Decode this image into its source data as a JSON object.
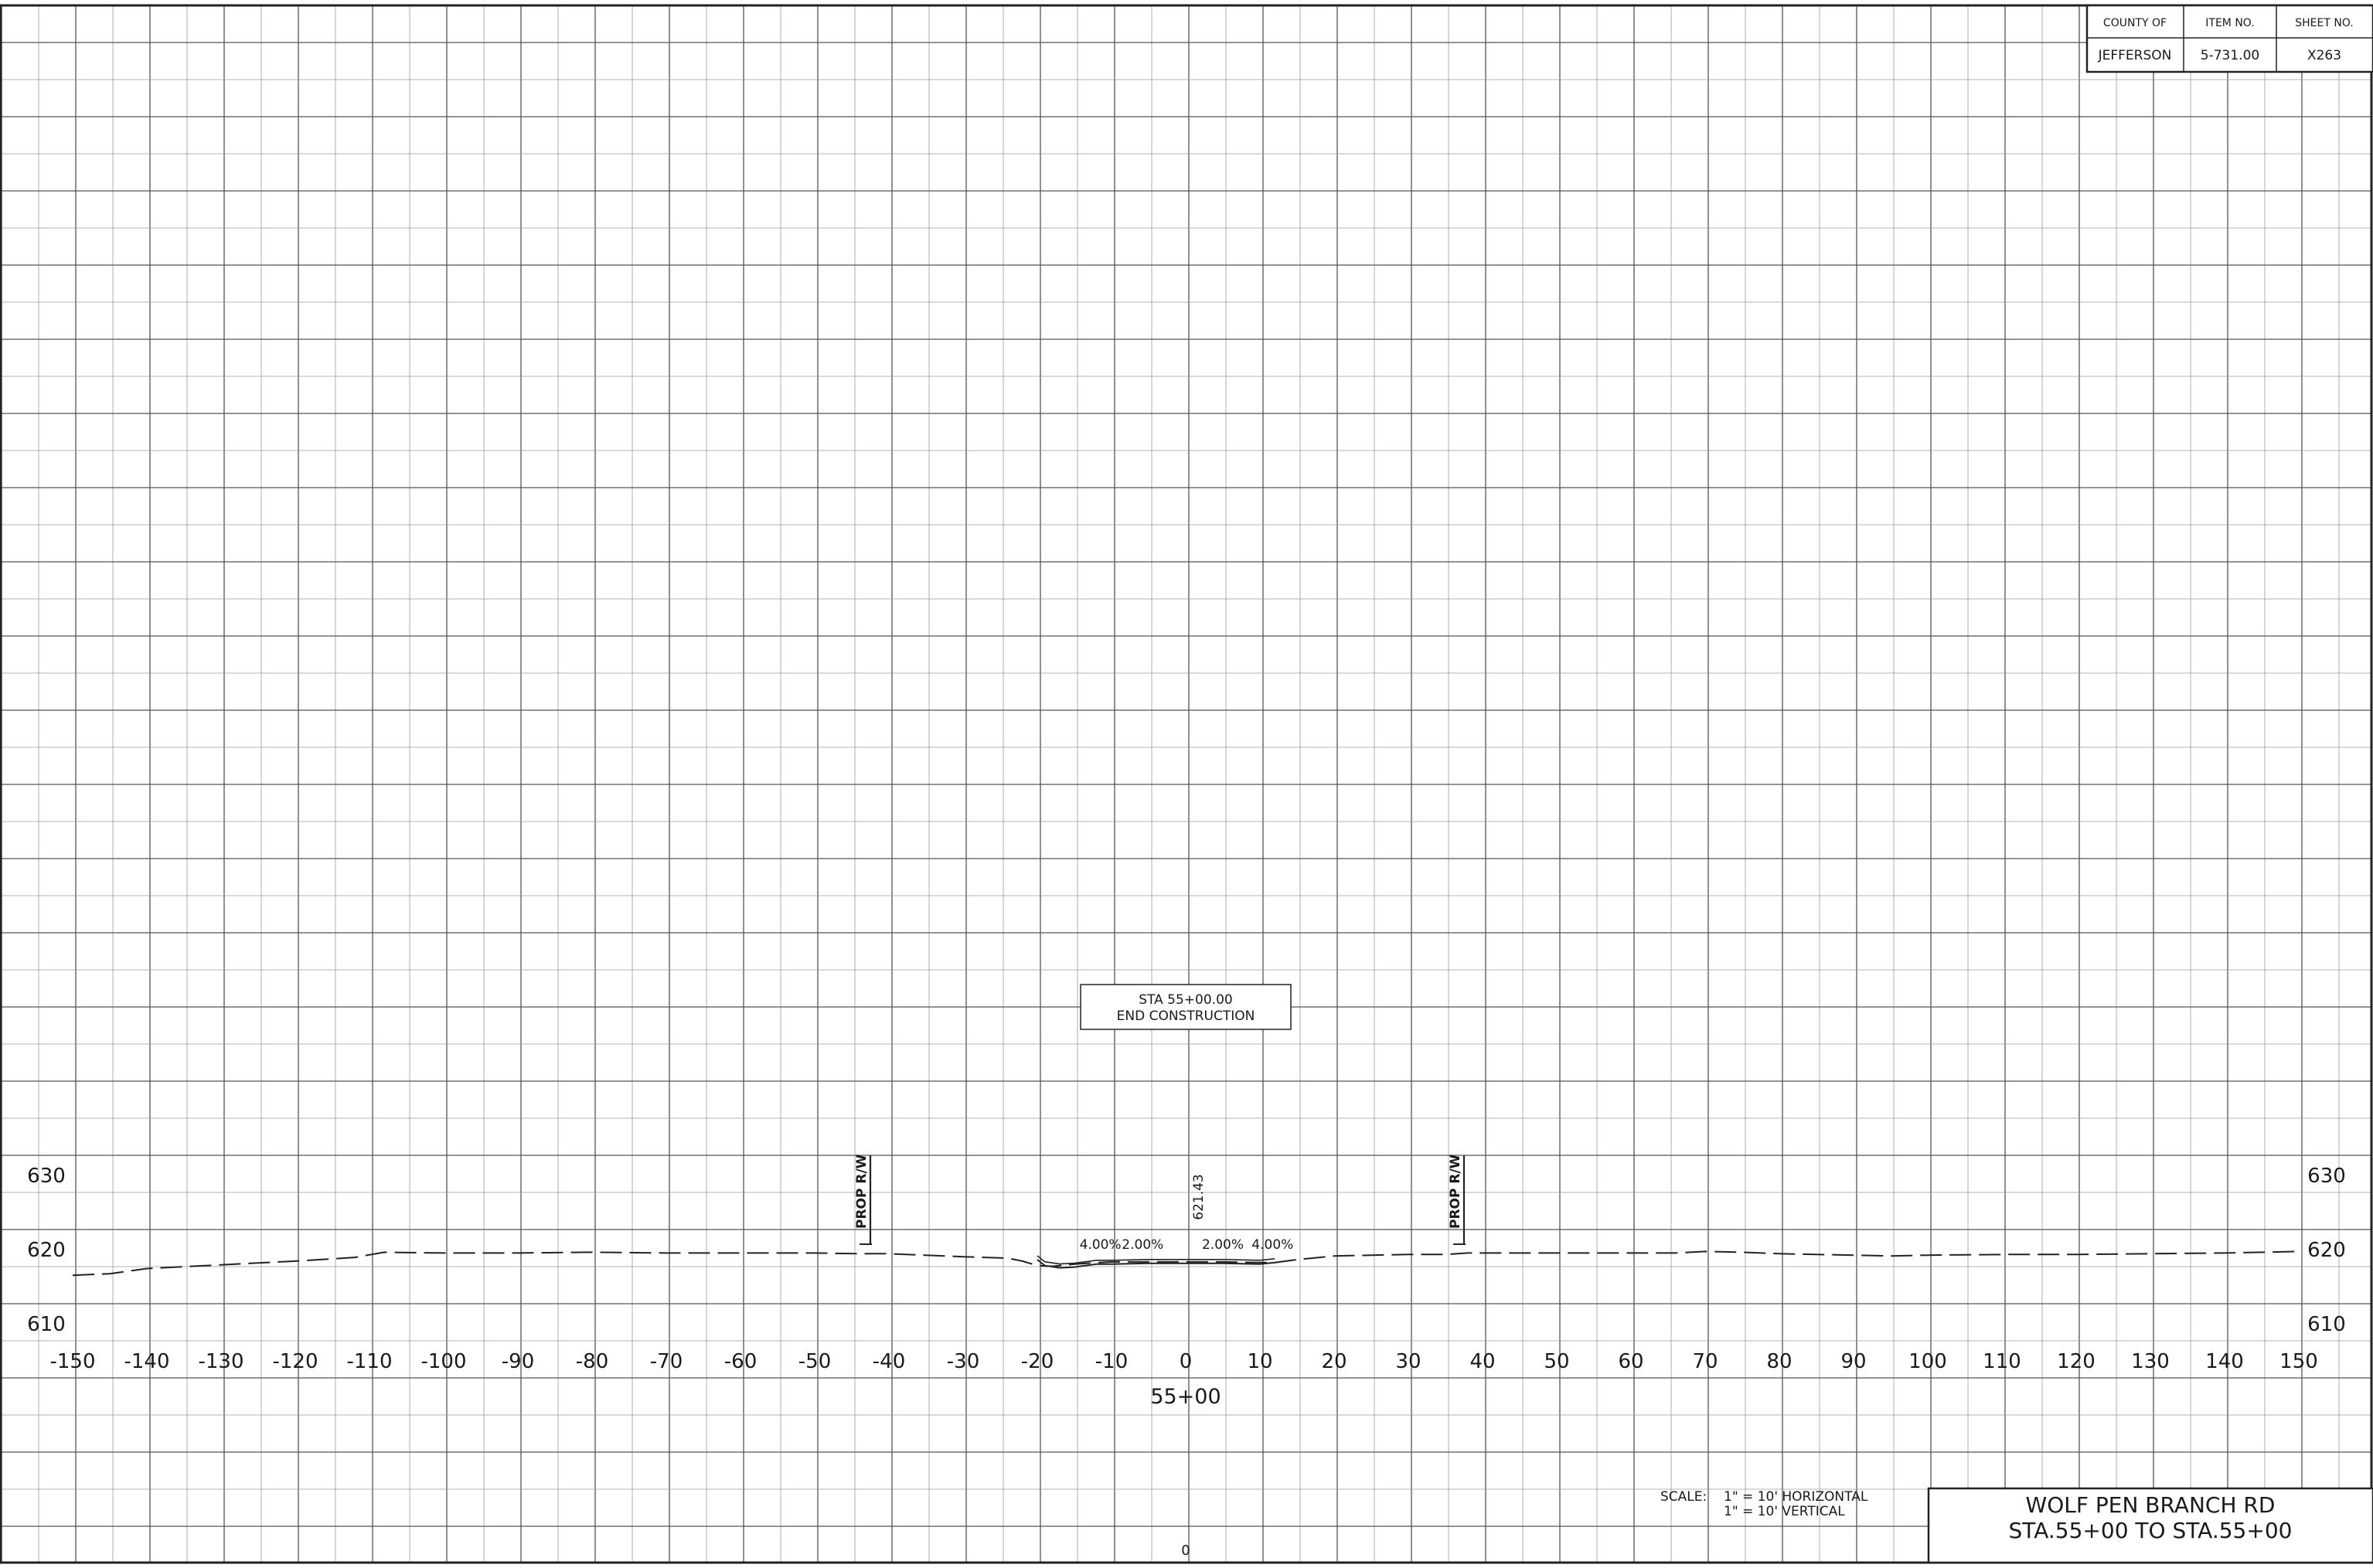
{
  "title_block": {
    "headers": [
      "COUNTY OF",
      "ITEM NO.",
      "SHEET NO."
    ],
    "values": [
      "JEFFERSON",
      "5-731.00",
      "X263"
    ]
  },
  "station_box": {
    "line1": "STA 55+00.00",
    "line2": "END CONSTRUCTION"
  },
  "drawing_title": {
    "line1": "WOLF PEN BRANCH RD",
    "line2": "STA.55+00 TO STA.55+00"
  },
  "scale_note": {
    "label": "SCALE:",
    "line1": "1\" = 10' HORIZONTAL",
    "line2": "1\" = 10' VERTICAL"
  },
  "center_station": "55+00",
  "bottom_marker": "0",
  "center_elevation": "621.43",
  "row_labels": {
    "left": "PROP R/W",
    "right": "PROP R/W"
  },
  "slope_labels": [
    {
      "text": "4.00%",
      "offset": -11.5
    },
    {
      "text": "2.00%",
      "offset": -5.8
    },
    {
      "text": "2.00%",
      "offset": 5
    },
    {
      "text": "4.00%",
      "offset": 11.7
    }
  ],
  "chart_data": {
    "type": "line",
    "xlim": [
      -150,
      150
    ],
    "ylim": [
      610,
      630
    ],
    "x_ticks": [
      -150,
      -140,
      -130,
      -120,
      -110,
      -100,
      -90,
      -80,
      -70,
      -60,
      -50,
      -40,
      -30,
      -20,
      -10,
      0,
      10,
      20,
      30,
      40,
      50,
      60,
      70,
      80,
      90,
      100,
      110,
      120,
      130,
      140,
      150
    ],
    "y_ticks_left": [
      630,
      620,
      610
    ],
    "y_ticks_right": [
      630,
      620,
      610
    ],
    "series": [
      {
        "style": "dashed",
        "x": [
          -150,
          -145,
          -140,
          -130,
          -120,
          -112,
          -108,
          -100,
          -90,
          -80,
          -70,
          -60,
          -50,
          -44,
          -40,
          -30,
          -24,
          -22,
          -20,
          -18,
          -15,
          -12,
          -10,
          -5,
          0,
          5,
          10,
          12,
          15,
          20,
          25,
          30,
          35,
          38,
          40,
          50,
          60,
          66,
          70,
          75,
          80,
          90,
          95,
          100,
          110,
          120,
          130,
          140,
          150
        ],
        "y": [
          617.9,
          618.1,
          618.8,
          619.3,
          619.8,
          620.3,
          621.0,
          620.9,
          620.9,
          621.0,
          620.9,
          620.9,
          620.9,
          620.8,
          620.8,
          620.4,
          620.2,
          619.8,
          619.2,
          619.1,
          619.4,
          619.6,
          619.7,
          619.7,
          619.7,
          619.7,
          619.6,
          619.6,
          620.0,
          620.5,
          620.6,
          620.7,
          620.7,
          620.9,
          620.9,
          620.9,
          620.9,
          620.9,
          621.1,
          621.0,
          620.8,
          620.6,
          620.5,
          620.6,
          620.7,
          620.7,
          620.8,
          620.9,
          621.1
        ]
      },
      {
        "style": "solid",
        "x": [
          -20,
          -19,
          -17,
          -15,
          -12,
          -10,
          -5,
          0,
          5,
          10,
          12
        ],
        "y": [
          620.0,
          619.2,
          618.9,
          619.0,
          619.4,
          619.4,
          619.5,
          619.5,
          619.5,
          619.4,
          619.6
        ]
      }
    ],
    "right_of_way": [
      -42.5,
      37.5
    ]
  }
}
